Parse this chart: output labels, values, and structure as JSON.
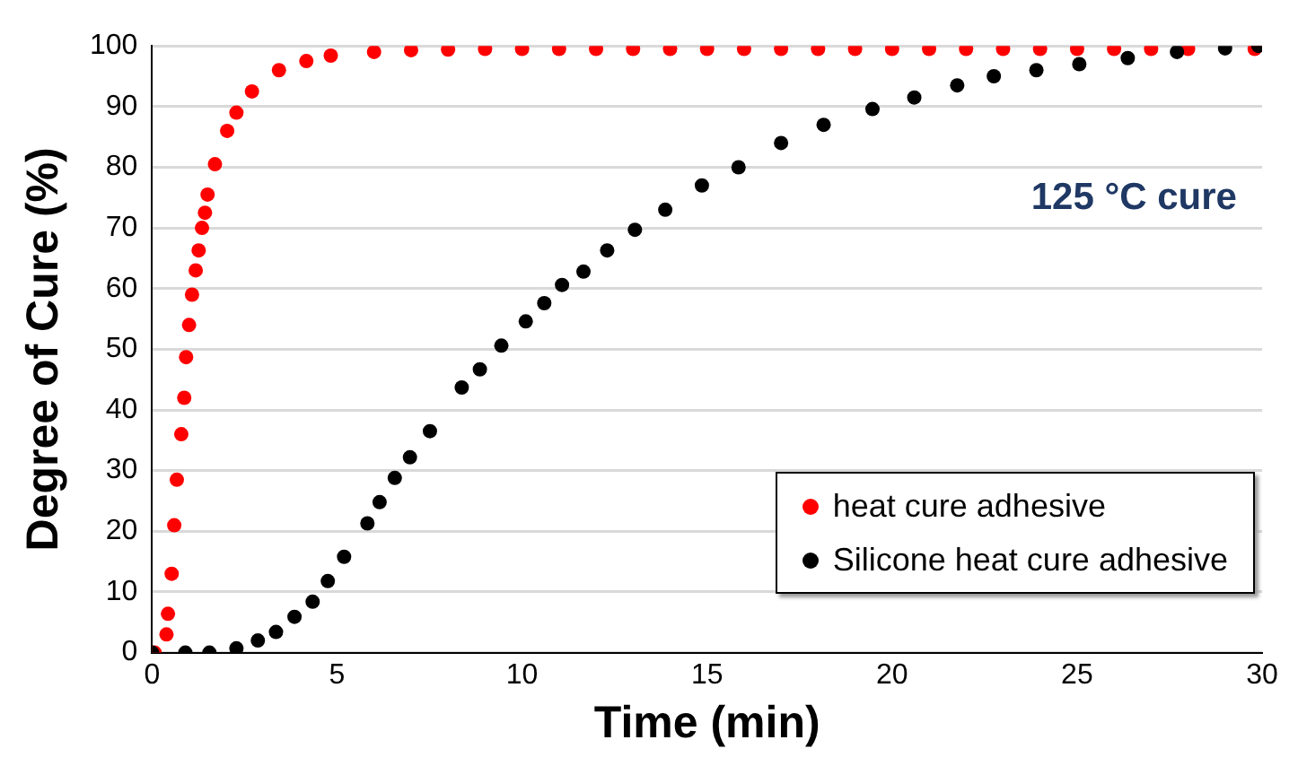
{
  "chart_data": {
    "type": "scatter",
    "xlabel": "Time (min)",
    "ylabel": "Degree of Cure (%)",
    "xlim": [
      0,
      30
    ],
    "xticks": [
      0,
      5,
      10,
      15,
      20,
      25,
      30
    ],
    "ylim": [
      0,
      100
    ],
    "yticks": [
      0,
      10,
      20,
      30,
      40,
      50,
      60,
      70,
      80,
      90,
      100
    ],
    "grid": "y",
    "legend": "bottom right",
    "marker": "circle",
    "annotations": [
      "125 °C cure"
    ],
    "series": [
      {
        "name": "heat cure adhesive",
        "color": "#ff0000",
        "x": [
          0.07,
          0.39,
          0.43,
          0.53,
          0.6,
          0.67,
          0.79,
          0.87,
          0.92,
          1.0,
          1.08,
          1.18,
          1.26,
          1.35,
          1.43,
          1.5,
          1.7,
          2.03,
          2.28,
          2.7,
          3.43,
          4.17,
          4.83,
          6,
          7,
          8,
          9,
          10,
          11,
          12,
          13,
          14,
          15,
          16,
          17,
          18,
          19,
          20,
          21,
          22,
          23,
          24,
          25,
          26,
          27,
          28,
          29,
          29.8
        ],
        "values": [
          0,
          3,
          6.4,
          13,
          21,
          28.5,
          36,
          42,
          48.7,
          54,
          59,
          63,
          66.3,
          70,
          72.5,
          75.5,
          80.5,
          86,
          89,
          92.5,
          96,
          97.5,
          98.4,
          99,
          99.3,
          99.4,
          99.5,
          99.5,
          99.5,
          99.5,
          99.5,
          99.5,
          99.5,
          99.5,
          99.5,
          99.5,
          99.5,
          99.5,
          99.5,
          99.5,
          99.5,
          99.5,
          99.5,
          99.5,
          99.5,
          99.5,
          null,
          99.5
        ]
      },
      {
        "name": "Silicone heat cure adhesive",
        "color": "#000000",
        "x": [
          0,
          0.9,
          1.55,
          2.28,
          2.86,
          3.35,
          3.85,
          4.34,
          4.75,
          5.19,
          5.82,
          6.15,
          6.56,
          6.97,
          7.51,
          8.37,
          8.86,
          9.44,
          10.1,
          10.6,
          11.08,
          11.66,
          12.3,
          13.05,
          13.87,
          14.86,
          15.85,
          17,
          18.15,
          19.47,
          20.6,
          21.76,
          22.75,
          23.9,
          25.06,
          26.37,
          27.7,
          29,
          29.9
        ],
        "values": [
          0,
          0,
          0,
          0.7,
          2,
          3.4,
          5.9,
          8.4,
          11.8,
          15.8,
          21.3,
          24.8,
          28.8,
          32.2,
          36.5,
          43.7,
          46.7,
          50.6,
          54.6,
          57.6,
          60.6,
          62.8,
          66.3,
          69.7,
          73,
          77,
          80,
          84,
          87,
          89.6,
          91.5,
          93.5,
          95,
          96,
          97,
          98,
          99,
          99.6,
          100
        ]
      }
    ]
  }
}
